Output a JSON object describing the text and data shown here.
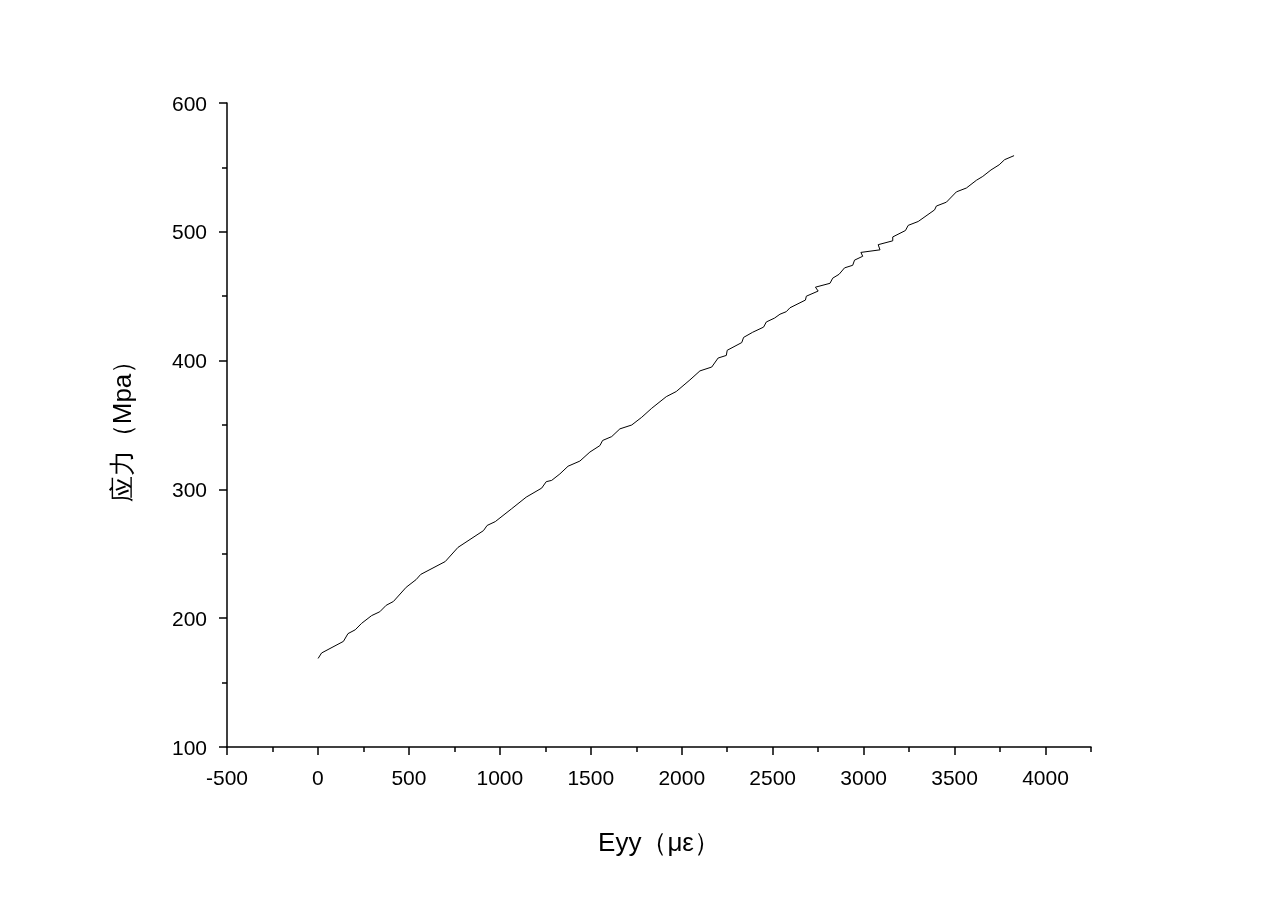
{
  "chart_data": {
    "type": "line",
    "xlabel": "Eyy（με）",
    "ylabel": "应力（Mpa）",
    "x": [
      2,
      20,
      140,
      165,
      205,
      240,
      295,
      340,
      375,
      415,
      485,
      540,
      565,
      700,
      770,
      910,
      930,
      975,
      1065,
      1145,
      1230,
      1255,
      1285,
      1330,
      1375,
      1440,
      1495,
      1550,
      1565,
      1615,
      1660,
      1725,
      1780,
      1835,
      1915,
      1970,
      2045,
      2100,
      2165,
      2200,
      2245,
      2250,
      2330,
      2340,
      2390,
      2450,
      2465,
      2510,
      2540,
      2575,
      2595,
      2680,
      2685,
      2750,
      2735,
      2815,
      2830,
      2865,
      2895,
      2940,
      2950,
      2995,
      2985,
      3090,
      3080,
      3160,
      3160,
      3230,
      3245,
      3300,
      3390,
      3400,
      3455,
      3510,
      3565,
      3620,
      3655,
      3700,
      3745,
      3775,
      3825
    ],
    "values": [
      169,
      173,
      182,
      188,
      191,
      196,
      202,
      205,
      210,
      213,
      224,
      230,
      234,
      244,
      255,
      268,
      272,
      275,
      285,
      294,
      301,
      306,
      307,
      312,
      318,
      322,
      329,
      334,
      338,
      341,
      347,
      350,
      356,
      363,
      372,
      376,
      385,
      392,
      395,
      402,
      404,
      408,
      414,
      418,
      422,
      426,
      430,
      433,
      436,
      438,
      441,
      447,
      450,
      454,
      457,
      460,
      464,
      467,
      472,
      474,
      478,
      481,
      484,
      486,
      490,
      493,
      496,
      501,
      505,
      508,
      517,
      520,
      523,
      531,
      534,
      540,
      543,
      548,
      552,
      556,
      559
    ],
    "color": "#000000",
    "marker": "none",
    "line_style": "solid",
    "grid": false,
    "xlim": [
      -500,
      4250
    ],
    "xticks": [
      -500,
      {
        "value": -250,
        "label": null
      },
      0,
      {
        "value": 250,
        "label": null
      },
      500,
      {
        "value": 750,
        "label": null
      },
      1000,
      {
        "value": 1250,
        "label": null
      },
      1500,
      {
        "value": 1750,
        "label": null
      },
      2000,
      {
        "value": 2250,
        "label": null
      },
      2500,
      {
        "value": 2750,
        "label": null
      },
      3000,
      {
        "value": 3250,
        "label": null
      },
      3500,
      {
        "value": 3750,
        "label": null
      },
      4000,
      {
        "value": 4250,
        "label": null
      }
    ],
    "ylim": [
      100,
      600
    ],
    "yticks": [
      100,
      {
        "value": 150,
        "label": null
      },
      200,
      {
        "value": 250,
        "label": null
      },
      300,
      {
        "value": 350,
        "label": null
      },
      400,
      {
        "value": 450,
        "label": null
      },
      500,
      {
        "value": 550,
        "label": null
      },
      600
    ]
  }
}
